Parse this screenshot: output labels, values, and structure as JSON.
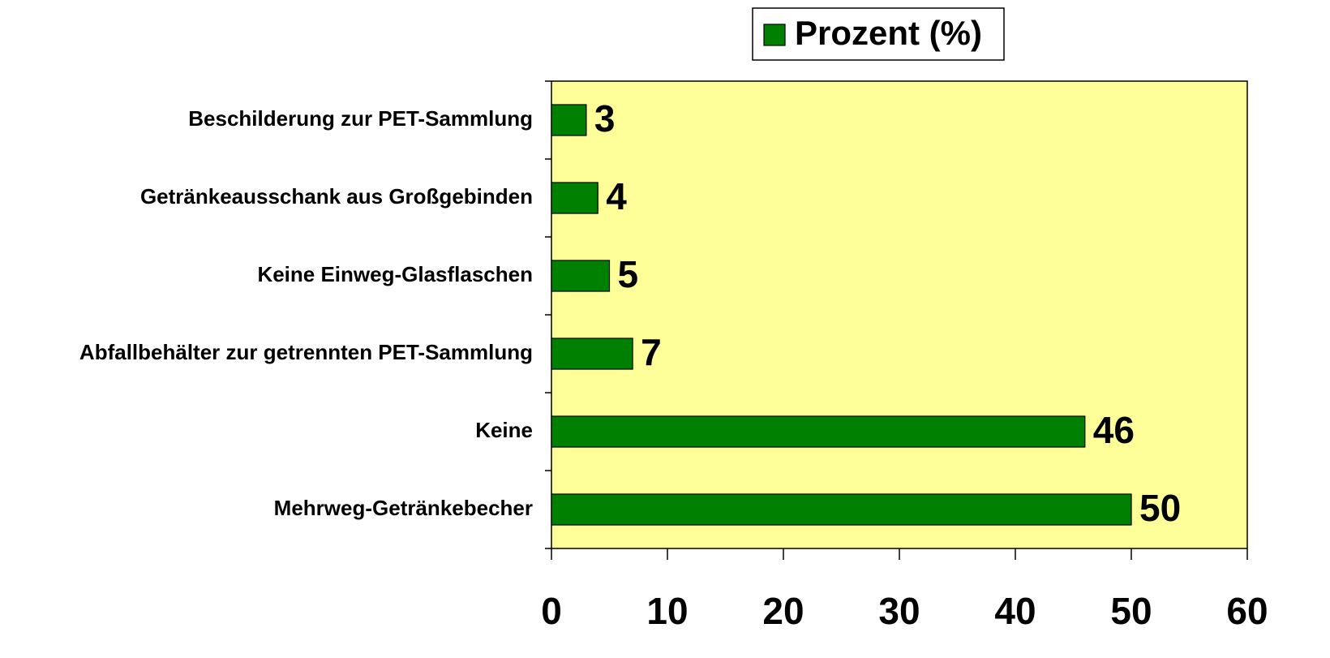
{
  "chart_data": {
    "type": "bar",
    "orientation": "horizontal",
    "categories": [
      "Beschilderung zur PET-Sammlung",
      "Getränkeausschank aus Großgebinden",
      "Keine Einweg-Glasflaschen",
      "Abfallbehälter zur getrennten PET-Sammlung",
      "Keine",
      "Mehrweg-Getränkebecher"
    ],
    "series": [
      {
        "name": "Prozent (%)",
        "color": "#008000",
        "values": [
          3,
          4,
          5,
          7,
          46,
          50
        ]
      }
    ],
    "xlim": [
      0,
      60
    ],
    "xticks": [
      0,
      10,
      20,
      30,
      40,
      50,
      60
    ],
    "plot_background": "#ffff99",
    "legend": "top"
  }
}
